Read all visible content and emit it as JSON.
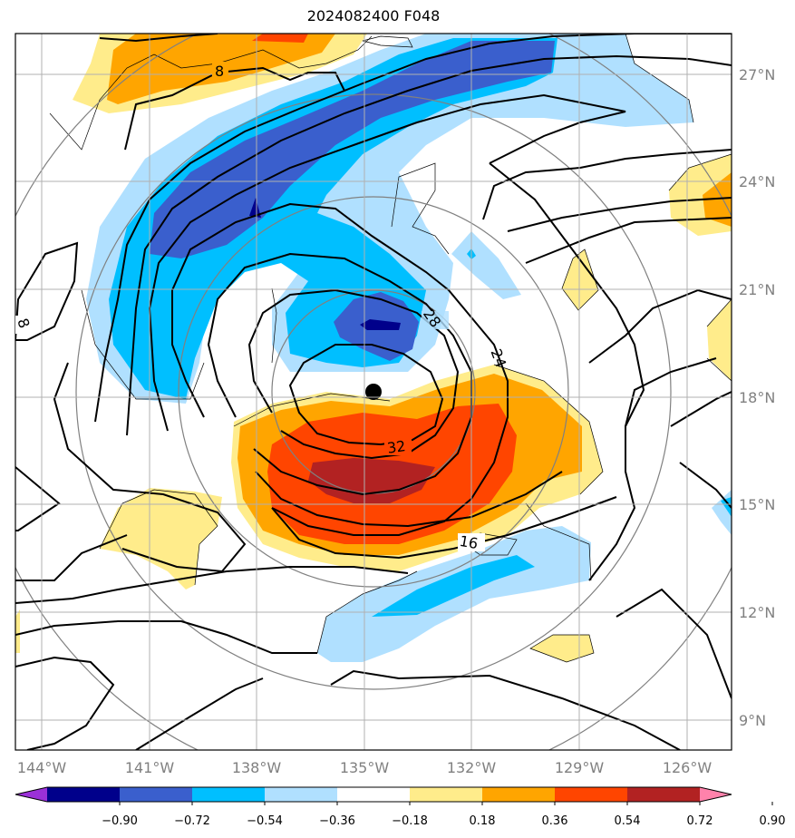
{
  "title": "2024082400 F048",
  "map": {
    "lon_range": [
      -144.8,
      -125.2
    ],
    "lat_range": [
      8.0,
      28.0
    ],
    "lat_labels": [
      "9°N",
      "12°N",
      "15°N",
      "18°N",
      "21°N",
      "24°N",
      "27°N"
    ],
    "lon_labels": [
      "144°W",
      "141°W",
      "138°W",
      "135°W",
      "132°W",
      "129°W",
      "126°W"
    ],
    "center_marker": {
      "lon": -134.8,
      "lat": 18.2
    },
    "contour_labels": [
      "8",
      "8",
      "28",
      "24",
      "32",
      "16"
    ]
  },
  "colorbar": {
    "ticks": [
      "−0.90",
      "−0.72",
      "−0.54",
      "−0.36",
      "−0.18",
      "0.18",
      "0.36",
      "0.54",
      "0.72",
      "0.90"
    ],
    "colors": [
      "#9b30d8",
      "#00008b",
      "#3a5fcd",
      "#00bfff",
      "#b0e0ff",
      "#ffffff",
      "#ffec8b",
      "#ffa500",
      "#ff4500",
      "#b22222",
      "#ff82ab"
    ]
  }
}
